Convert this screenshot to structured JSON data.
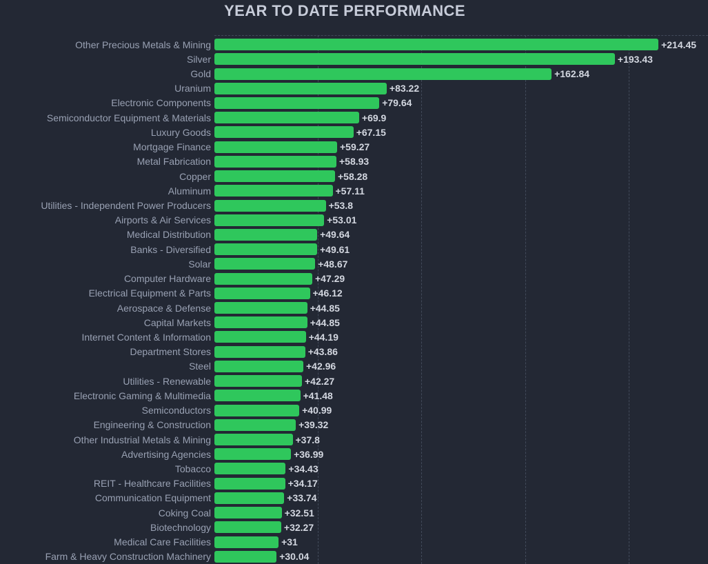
{
  "title": "YEAR TO DATE PERFORMANCE",
  "chart_data": {
    "type": "bar",
    "orientation": "horizontal",
    "title": "YEAR TO DATE PERFORMANCE",
    "categories": [
      "Other Precious Metals & Mining",
      "Silver",
      "Gold",
      "Uranium",
      "Electronic Components",
      "Semiconductor Equipment & Materials",
      "Luxury Goods",
      "Mortgage Finance",
      "Metal Fabrication",
      "Copper",
      "Aluminum",
      "Utilities - Independent Power Producers",
      "Airports & Air Services",
      "Medical Distribution",
      "Banks - Diversified",
      "Solar",
      "Computer Hardware",
      "Electrical Equipment & Parts",
      "Aerospace & Defense",
      "Capital Markets",
      "Internet Content & Information",
      "Department Stores",
      "Steel",
      "Utilities - Renewable",
      "Electronic Gaming & Multimedia",
      "Semiconductors",
      "Engineering & Construction",
      "Other Industrial Metals & Mining",
      "Advertising Agencies",
      "Tobacco",
      "REIT - Healthcare Facilities",
      "Communication Equipment",
      "Coking Coal",
      "Biotechnology",
      "Medical Care Facilities",
      "Farm & Heavy Construction Machinery"
    ],
    "values": [
      214.45,
      193.43,
      162.84,
      83.22,
      79.64,
      69.9,
      67.15,
      59.27,
      58.93,
      58.28,
      57.11,
      53.8,
      53.01,
      49.64,
      49.61,
      48.67,
      47.29,
      46.12,
      44.85,
      44.85,
      44.19,
      43.86,
      42.96,
      42.27,
      41.48,
      40.99,
      39.32,
      37.8,
      36.99,
      34.43,
      34.17,
      33.74,
      32.51,
      32.27,
      31,
      30.04
    ],
    "value_labels": [
      "+214.45",
      "+193.43",
      "+162.84",
      "+83.22",
      "+79.64",
      "+69.9",
      "+67.15",
      "+59.27",
      "+58.93",
      "+58.28",
      "+57.11",
      "+53.8",
      "+53.01",
      "+49.64",
      "+49.61",
      "+48.67",
      "+47.29",
      "+46.12",
      "+44.85",
      "+44.85",
      "+44.19",
      "+43.86",
      "+42.96",
      "+42.27",
      "+41.48",
      "+40.99",
      "+39.32",
      "+37.8",
      "+36.99",
      "+34.43",
      "+34.17",
      "+33.74",
      "+32.51",
      "+32.27",
      "+31",
      "+30.04"
    ],
    "xlim": [
      0,
      238.4
    ],
    "gridline_values": [
      50,
      100,
      150,
      200
    ],
    "grid": "dashed-vertical-plus-top-line",
    "legend": "none",
    "bar_color": "#2fc75c",
    "background_color": "#232834",
    "title_color": "#c7ccd9",
    "label_color": "#99a1b3",
    "value_color": "#d3d7e0",
    "gridline_color": "#424a5a"
  }
}
